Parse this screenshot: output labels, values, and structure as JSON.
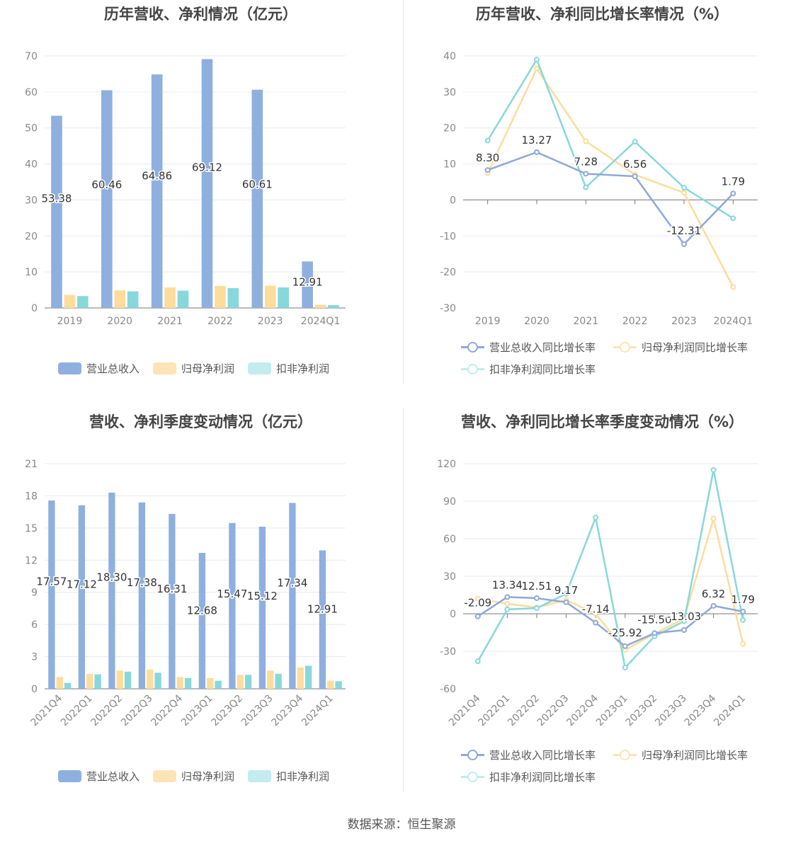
{
  "source": "数据来源：恒生聚源",
  "chart_data": [
    {
      "id": "annual-bars",
      "type": "bar",
      "title": "历年营收、净利情况（亿元）",
      "categories": [
        "2019",
        "2020",
        "2021",
        "2022",
        "2023",
        "2024Q1"
      ],
      "ylim": [
        0,
        70
      ],
      "yticks": [
        0,
        10,
        20,
        30,
        40,
        50,
        60,
        70
      ],
      "series": [
        {
          "name": "营业总收入",
          "color": "#8fb0de",
          "values": [
            53.38,
            60.46,
            64.86,
            69.12,
            60.61,
            12.91
          ],
          "show_labels": true
        },
        {
          "name": "归母净利润",
          "color": "#fddc9c",
          "values": [
            3.6,
            4.9,
            5.7,
            6.1,
            6.2,
            0.9
          ],
          "show_labels": false
        },
        {
          "name": "扣非净利润",
          "color": "#87d8db",
          "values": [
            3.3,
            4.6,
            4.8,
            5.5,
            5.7,
            0.8
          ],
          "show_labels": false
        }
      ],
      "legend": "bottom",
      "grid": true
    },
    {
      "id": "annual-lines",
      "type": "line",
      "title": "历年营收、净利同比增长率情况（%）",
      "categories": [
        "2019",
        "2020",
        "2021",
        "2022",
        "2023",
        "2024Q1"
      ],
      "ylim": [
        -30,
        40
      ],
      "yticks": [
        -30,
        -20,
        -10,
        0,
        10,
        20,
        30,
        40
      ],
      "series": [
        {
          "name": "营业总收入同比增长率",
          "color": "#8fa8d6",
          "values": [
            8.3,
            13.27,
            7.28,
            6.56,
            -12.31,
            1.79
          ],
          "labels": [
            "8.30",
            "13.27",
            "7.28",
            "6.56",
            "-12.31",
            "1.79"
          ]
        },
        {
          "name": "归母净利润同比增长率",
          "color": "#fddc9c",
          "values": [
            7.5,
            36.5,
            16.3,
            7.0,
            2.0,
            -24.2
          ]
        },
        {
          "name": "扣非净利润同比增长率",
          "color": "#87d8db",
          "values": [
            16.5,
            39.0,
            3.5,
            16.2,
            3.4,
            -5.1
          ]
        }
      ],
      "legend": "bottom",
      "grid": true
    },
    {
      "id": "quarterly-bars",
      "type": "bar",
      "title": "营收、净利季度变动情况（亿元）",
      "categories": [
        "2021Q4",
        "2022Q1",
        "2022Q2",
        "2022Q3",
        "2022Q4",
        "2023Q1",
        "2023Q2",
        "2023Q3",
        "2023Q4",
        "2024Q1"
      ],
      "ylim": [
        0,
        21
      ],
      "yticks": [
        0,
        3,
        6,
        9,
        12,
        15,
        18,
        21
      ],
      "series": [
        {
          "name": "营业总收入",
          "color": "#8fb0de",
          "values": [
            17.57,
            17.12,
            18.3,
            17.38,
            16.31,
            12.68,
            15.47,
            15.12,
            17.34,
            12.91
          ],
          "show_labels": true
        },
        {
          "name": "归母净利润",
          "color": "#fddc9c",
          "values": [
            1.1,
            1.4,
            1.7,
            1.8,
            1.1,
            1.0,
            1.3,
            1.7,
            2.0,
            0.75
          ],
          "show_labels": false
        },
        {
          "name": "扣非净利润",
          "color": "#87d8db",
          "values": [
            0.55,
            1.35,
            1.6,
            1.5,
            1.0,
            0.75,
            1.3,
            1.4,
            2.15,
            0.7
          ],
          "show_labels": false
        }
      ],
      "legend": "bottom",
      "grid": true
    },
    {
      "id": "quarterly-lines",
      "type": "line",
      "title": "营收、净利同比增长率季度变动情况（%）",
      "categories": [
        "2021Q4",
        "2022Q1",
        "2022Q2",
        "2022Q3",
        "2022Q4",
        "2023Q1",
        "2023Q2",
        "2023Q3",
        "2023Q4",
        "2024Q1"
      ],
      "ylim": [
        -60,
        120
      ],
      "yticks": [
        -60,
        -30,
        0,
        30,
        60,
        90,
        120
      ],
      "series": [
        {
          "name": "营业总收入同比增长率",
          "color": "#8fa8d6",
          "values": [
            -2.09,
            13.34,
            12.51,
            9.17,
            -7.14,
            -25.92,
            -15.5,
            -13.03,
            6.32,
            1.79
          ],
          "labels": [
            "-2.09",
            "13.34",
            "12.51",
            "9.17",
            "-7.14",
            "-25.92",
            "-15.50",
            "-13.03",
            "6.32",
            "1.79"
          ]
        },
        {
          "name": "归母净利润同比增长率",
          "color": "#fddc9c",
          "values": [
            12.0,
            8.0,
            5.0,
            11.0,
            0.0,
            -29.0,
            -16.0,
            -4.0,
            76.0,
            -24.0
          ]
        },
        {
          "name": "扣非净利润同比增长率",
          "color": "#87d8db",
          "values": [
            -38.0,
            3.5,
            4.5,
            16.0,
            77.0,
            -43.0,
            -18.0,
            -6.0,
            115.0,
            -5.0
          ]
        }
      ],
      "legend": "bottom",
      "grid": true
    }
  ]
}
